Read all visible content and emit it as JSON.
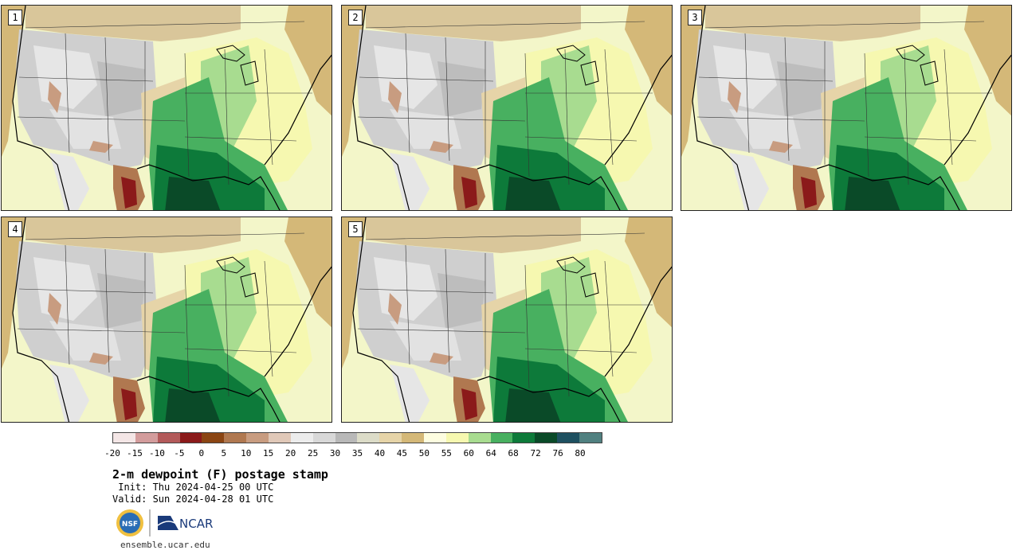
{
  "panels": [
    {
      "label": "1"
    },
    {
      "label": "2"
    },
    {
      "label": "3"
    },
    {
      "label": "4"
    },
    {
      "label": "5"
    }
  ],
  "colorbar": {
    "colors": [
      "#f4e6e6",
      "#d39c9c",
      "#b35a5a",
      "#8b1a1a",
      "#8b4513",
      "#b07850",
      "#c89c80",
      "#e0c8b8",
      "#ececec",
      "#d8d8d8",
      "#b8b8b8",
      "#dcdcc8",
      "#e6d4a8",
      "#d4b878",
      "#fdfde0",
      "#f6f8b0",
      "#a8dc90",
      "#48b060",
      "#0d7a3a",
      "#0a4a28",
      "#1e5060",
      "#508080"
    ],
    "ticks": [
      "-20",
      "-15",
      "-10",
      "-5",
      "0",
      "5",
      "10",
      "15",
      "20",
      "25",
      "30",
      "35",
      "40",
      "45",
      "50",
      "55",
      "60",
      "64",
      "68",
      "72",
      "76",
      "80"
    ]
  },
  "title": "2-m dewpoint (F) postage stamp",
  "init": " Init: Thu 2024-04-25 00 UTC",
  "valid": "Valid: Sun 2024-04-28 01 UTC",
  "logos": {
    "nsf": "NSF",
    "ncar": "NCAR"
  },
  "site": "ensemble.ucar.edu"
}
